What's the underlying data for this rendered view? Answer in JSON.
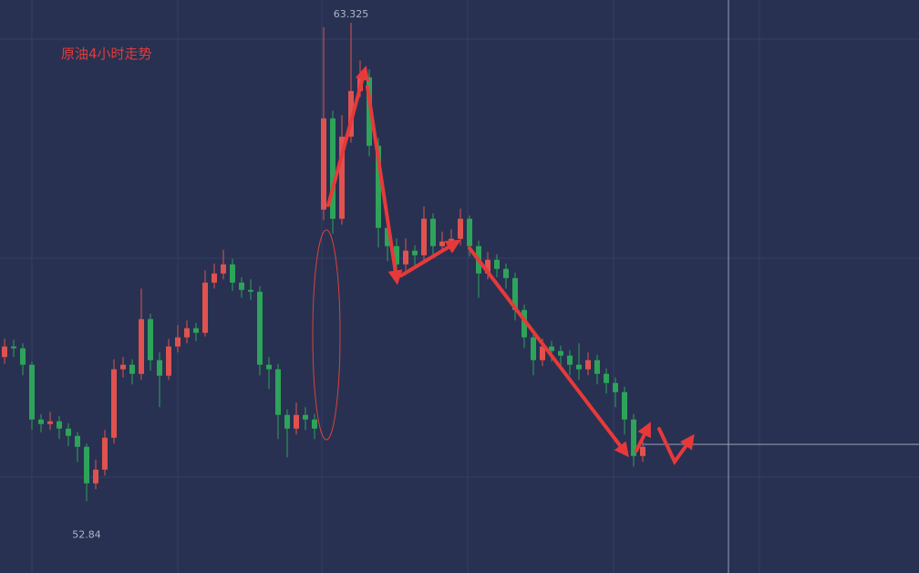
{
  "chart_data": {
    "type": "candlestick",
    "title": "原油4小时走势",
    "open": [
      56.0,
      56.23,
      56.19,
      55.83,
      54.63,
      54.53,
      54.59,
      54.43,
      54.27,
      54.03,
      53.23,
      53.53,
      54.23,
      55.73,
      55.83,
      55.63,
      56.83,
      55.93,
      55.59,
      56.23,
      56.43,
      56.63,
      56.53,
      57.63,
      57.83,
      58.03,
      57.63,
      57.47,
      57.43,
      55.83,
      55.73,
      54.73,
      54.43,
      54.73,
      54.63,
      59.23,
      61.23,
      59.03,
      60.83,
      61.83,
      62.13,
      60.63,
      58.83,
      58.43,
      58.03,
      58.33,
      58.23,
      59.03,
      58.43,
      58.53,
      58.59,
      59.03,
      58.43,
      57.83,
      58.13,
      57.93,
      57.73,
      57.03,
      56.43,
      55.93,
      56.23,
      56.13,
      56.03,
      55.83,
      55.73,
      55.93,
      55.63,
      55.43,
      55.23,
      54.63,
      53.83
    ],
    "high": [
      56.4,
      56.38,
      56.3,
      55.9,
      54.75,
      54.8,
      54.7,
      54.55,
      54.35,
      54.1,
      53.75,
      54.4,
      55.95,
      56.0,
      55.95,
      57.5,
      56.95,
      56.1,
      56.4,
      56.7,
      56.8,
      56.75,
      57.9,
      58.05,
      58.35,
      58.15,
      57.75,
      57.7,
      57.55,
      56.0,
      55.85,
      54.85,
      55.0,
      54.9,
      54.75,
      63.23,
      61.4,
      61.3,
      63.325,
      62.5,
      62.3,
      60.8,
      59.0,
      58.6,
      58.6,
      58.45,
      59.3,
      59.15,
      58.75,
      58.8,
      59.25,
      59.1,
      58.55,
      58.3,
      58.25,
      58.05,
      57.85,
      57.15,
      56.55,
      56.4,
      56.35,
      56.25,
      56.15,
      56.3,
      56.1,
      56.05,
      55.75,
      55.55,
      55.35,
      54.75,
      54.2
    ],
    "low": [
      55.85,
      56.0,
      55.6,
      54.4,
      54.35,
      54.4,
      54.2,
      54.05,
      53.7,
      52.84,
      53.1,
      53.4,
      54.1,
      55.55,
      55.4,
      55.5,
      55.7,
      54.9,
      55.5,
      56.1,
      56.3,
      56.35,
      56.45,
      57.5,
      57.7,
      57.45,
      57.3,
      57.25,
      55.6,
      55.3,
      54.2,
      53.8,
      54.3,
      54.4,
      54.2,
      59.0,
      58.7,
      58.9,
      60.7,
      61.7,
      60.4,
      58.4,
      58.1,
      57.8,
      57.9,
      58.0,
      58.1,
      58.2,
      58.3,
      58.4,
      58.45,
      58.2,
      57.3,
      57.7,
      57.75,
      57.5,
      56.8,
      56.2,
      55.6,
      55.8,
      55.9,
      55.8,
      55.6,
      55.5,
      55.6,
      55.4,
      55.2,
      54.9,
      54.3,
      53.6,
      53.7
    ],
    "close": [
      56.23,
      56.19,
      55.83,
      54.63,
      54.53,
      54.59,
      54.43,
      54.27,
      54.03,
      53.23,
      53.53,
      54.23,
      55.73,
      55.83,
      55.63,
      56.83,
      55.93,
      55.59,
      56.23,
      56.43,
      56.63,
      56.53,
      57.63,
      57.83,
      58.03,
      57.63,
      57.47,
      57.43,
      55.83,
      55.73,
      54.73,
      54.43,
      54.73,
      54.63,
      54.43,
      61.23,
      59.03,
      60.83,
      61.83,
      62.13,
      60.63,
      58.83,
      58.43,
      58.03,
      58.33,
      58.23,
      59.03,
      58.43,
      58.53,
      58.59,
      59.03,
      58.43,
      57.83,
      58.13,
      57.93,
      57.73,
      57.03,
      56.43,
      55.93,
      56.23,
      56.13,
      56.03,
      55.83,
      55.73,
      55.93,
      55.63,
      55.43,
      55.23,
      54.63,
      53.83,
      54.03
    ],
    "up_color": "#e0524f",
    "down_color": "#2ea35a",
    "ylim": [
      51.265,
      63.825
    ]
  }
}
